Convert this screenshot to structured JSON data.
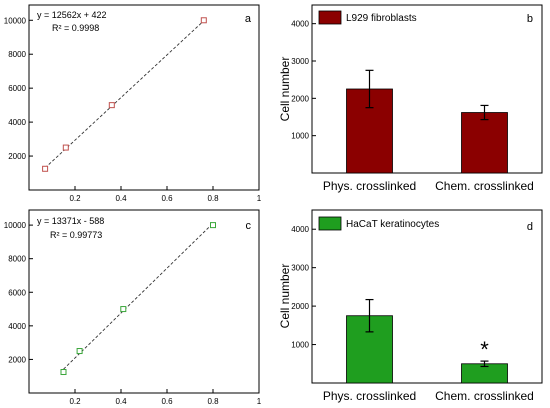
{
  "chart_data": [
    {
      "panel": "a",
      "type": "scatter",
      "equation": "y = 12562x + 422",
      "r_squared": "R² = 0.9998",
      "x": [
        0.07,
        0.16,
        0.36,
        0.76
      ],
      "y": [
        1250,
        2500,
        5000,
        10000
      ],
      "fit": {
        "slope": 12562,
        "intercept": 422
      },
      "xlim": [
        0,
        1
      ],
      "ylim": [
        0,
        10900
      ],
      "xticks": [
        "0.2",
        "0.4",
        "0.6",
        "0.8",
        "1"
      ],
      "yticks": [
        "2000",
        "4000",
        "6000",
        "8000",
        "10000"
      ],
      "marker_color": "#c0504d",
      "grid": false
    },
    {
      "panel": "b",
      "type": "bar",
      "categories": [
        "Phys. crosslinked",
        "Chem. crosslinked"
      ],
      "values": [
        2250,
        1620
      ],
      "errors": [
        500,
        190
      ],
      "ylabel": "Cell number",
      "ylim": [
        0,
        4500
      ],
      "yticks": [
        "1000",
        "2000",
        "3000",
        "4000"
      ],
      "legend": "L929 fibroblasts",
      "legend_position": "top-left",
      "color": "#8b0000",
      "grid": false
    },
    {
      "panel": "c",
      "type": "scatter",
      "equation": "y = 13371x - 588",
      "r_squared": "R² = 0.99773",
      "x": [
        0.15,
        0.22,
        0.41,
        0.8
      ],
      "y": [
        1250,
        2500,
        5000,
        10000
      ],
      "fit": {
        "slope": 13371,
        "intercept": -588
      },
      "xlim": [
        0,
        1
      ],
      "ylim": [
        0,
        10900
      ],
      "xticks": [
        "0.2",
        "0.4",
        "0.6",
        "0.8",
        "1"
      ],
      "yticks": [
        "2000",
        "4000",
        "6000",
        "8000",
        "10000"
      ],
      "marker_color": "#3aa63a",
      "grid": false
    },
    {
      "panel": "d",
      "type": "bar",
      "categories": [
        "Phys. crosslinked",
        "Chem. crosslinked"
      ],
      "values": [
        1750,
        500
      ],
      "errors": [
        420,
        70
      ],
      "annotation": "*",
      "ylabel": "Cell number",
      "ylim": [
        0,
        4500
      ],
      "yticks": [
        "1000",
        "2000",
        "3000",
        "4000"
      ],
      "legend": "HaCaT keratinocytes",
      "legend_position": "top-left",
      "color": "#1f9e1f",
      "grid": false
    }
  ]
}
